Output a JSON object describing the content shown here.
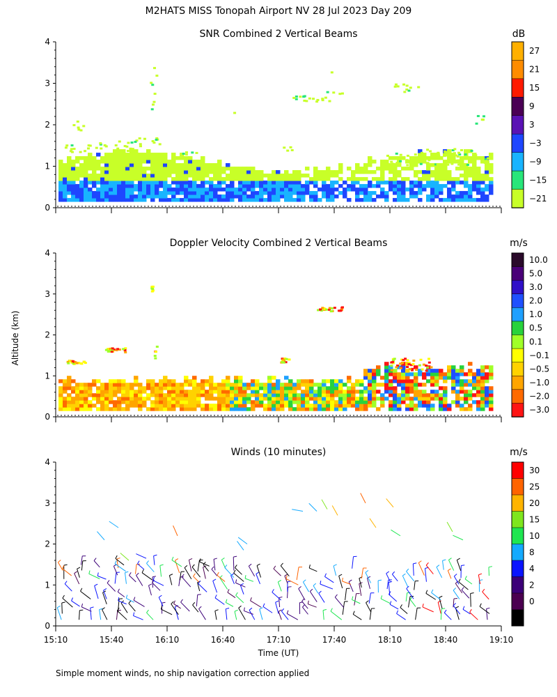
{
  "figure": {
    "main_title": "M2HATS MISS Tonopah Airport NV  28 Jul 2023 Day 209",
    "ylabel": "Altitude (km)",
    "xlabel": "Time (UT)",
    "footnote": "Simple moment winds, no ship navigation correction applied"
  },
  "chart_data": [
    {
      "type": "heatmap",
      "title": "SNR Combined 2 Vertical Beams",
      "colorbar_unit": "dB",
      "ylim": [
        0,
        4
      ],
      "yticks": [
        "0",
        "1",
        "2",
        "3",
        "4"
      ],
      "x_range": [
        "15:10",
        "19:10"
      ],
      "colorbar": [
        {
          "label": "27",
          "color": "#ffb000"
        },
        {
          "label": "21",
          "color": "#ff8c00"
        },
        {
          "label": "15",
          "color": "#ff1a00"
        },
        {
          "label": "9",
          "color": "#4b0055"
        },
        {
          "label": "3",
          "color": "#5a12b4"
        },
        {
          "label": "−3",
          "color": "#1e46ff"
        },
        {
          "label": "−9",
          "color": "#18b4ff"
        },
        {
          "label": "−15",
          "color": "#28e67a"
        },
        {
          "label": "−21",
          "color": "#c8ff28"
        }
      ],
      "description": "Low-level returns 0.15–1.2 km across the period; scattered returns up to ~3.5 km"
    },
    {
      "type": "heatmap",
      "title": "Doppler Velocity Combined 2 Vertical Beams",
      "colorbar_unit": "m/s",
      "ylim": [
        0,
        4
      ],
      "yticks": [
        "0",
        "1",
        "2",
        "3",
        "4"
      ],
      "colorbar": [
        {
          "label": "10.0",
          "color": "#2a0a2a"
        },
        {
          "label": "5.0",
          "color": "#4a0078"
        },
        {
          "label": "3.0",
          "color": "#3010c8"
        },
        {
          "label": "2.0",
          "color": "#1e50ff"
        },
        {
          "label": "1.0",
          "color": "#1ea0ff"
        },
        {
          "label": "0.5",
          "color": "#28d23c"
        },
        {
          "label": "0.1",
          "color": "#a0ff28"
        },
        {
          "label": "−0.1",
          "color": "#ffff00"
        },
        {
          "label": "−0.5",
          "color": "#ffd200"
        },
        {
          "label": "−1.0",
          "color": "#ffa500"
        },
        {
          "label": "−2.0",
          "color": "#ff6a00"
        },
        {
          "label": "−3.0",
          "color": "#ff1414"
        }
      ]
    },
    {
      "type": "scatter",
      "title": "Winds (10 minutes)",
      "colorbar_unit": "m/s",
      "ylim": [
        0,
        4
      ],
      "yticks": [
        "0",
        "1",
        "2",
        "3",
        "4"
      ],
      "xticks": [
        "15:10",
        "15:40",
        "16:10",
        "16:40",
        "17:10",
        "17:40",
        "18:10",
        "18:40",
        "19:10"
      ],
      "colorbar": [
        {
          "label": "30",
          "color": "#ff0000"
        },
        {
          "label": "25",
          "color": "#ff6400"
        },
        {
          "label": "20",
          "color": "#ffb400"
        },
        {
          "label": "15",
          "color": "#7ee61e"
        },
        {
          "label": "10",
          "color": "#1ee650"
        },
        {
          "label": "8",
          "color": "#14aaff"
        },
        {
          "label": "4",
          "color": "#0a14ff"
        },
        {
          "label": "2",
          "color": "#3c0078"
        },
        {
          "label": "0",
          "color": "#4b0050"
        }
      ],
      "colorbar_bottom_color": "#000000"
    }
  ]
}
